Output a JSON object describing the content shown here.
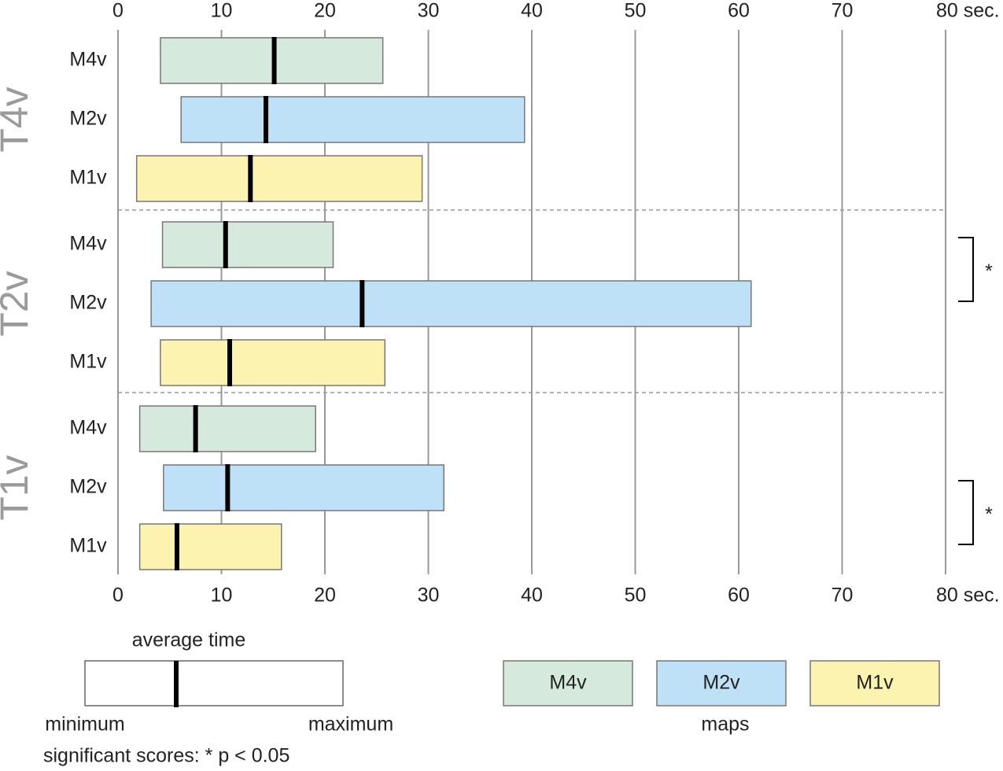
{
  "chart_data": {
    "type": "range-bar",
    "categories": [
      "T4v",
      "T2v",
      "T1v"
    ],
    "series": [
      {
        "name": "M4v",
        "color": "#d6e9dd",
        "min": [
          4.1,
          4.3,
          2.1
        ],
        "avg": [
          15.1,
          10.4,
          7.5
        ],
        "max": [
          25.6,
          20.8,
          19.1
        ]
      },
      {
        "name": "M2v",
        "color": "#bfe1f7",
        "min": [
          6.1,
          3.2,
          4.4
        ],
        "avg": [
          14.3,
          23.6,
          10.6
        ],
        "max": [
          39.3,
          61.2,
          31.5
        ]
      },
      {
        "name": "M1v",
        "color": "#fdf3b1",
        "min": [
          1.8,
          4.1,
          2.1
        ],
        "avg": [
          12.8,
          10.8,
          5.7
        ],
        "max": [
          29.4,
          25.8,
          15.8
        ]
      }
    ],
    "xlim": [
      0,
      80
    ],
    "xticks": [
      0,
      10,
      20,
      30,
      40,
      50,
      60,
      70,
      {
        "value": 80,
        "label": "80 sec."
      }
    ],
    "grid": true,
    "annotations": [
      {
        "text": "*",
        "category": "T2v",
        "between": [
          "M4v",
          "M2v"
        ]
      },
      {
        "text": "*",
        "category": "T1v",
        "between": [
          "M2v",
          "M1v"
        ]
      }
    ],
    "legend_notes": {
      "average": "average time",
      "minimum": "minimum",
      "maximum": "maximum",
      "significance": "significant scores: * p < 0.05",
      "series_title": "maps"
    }
  }
}
